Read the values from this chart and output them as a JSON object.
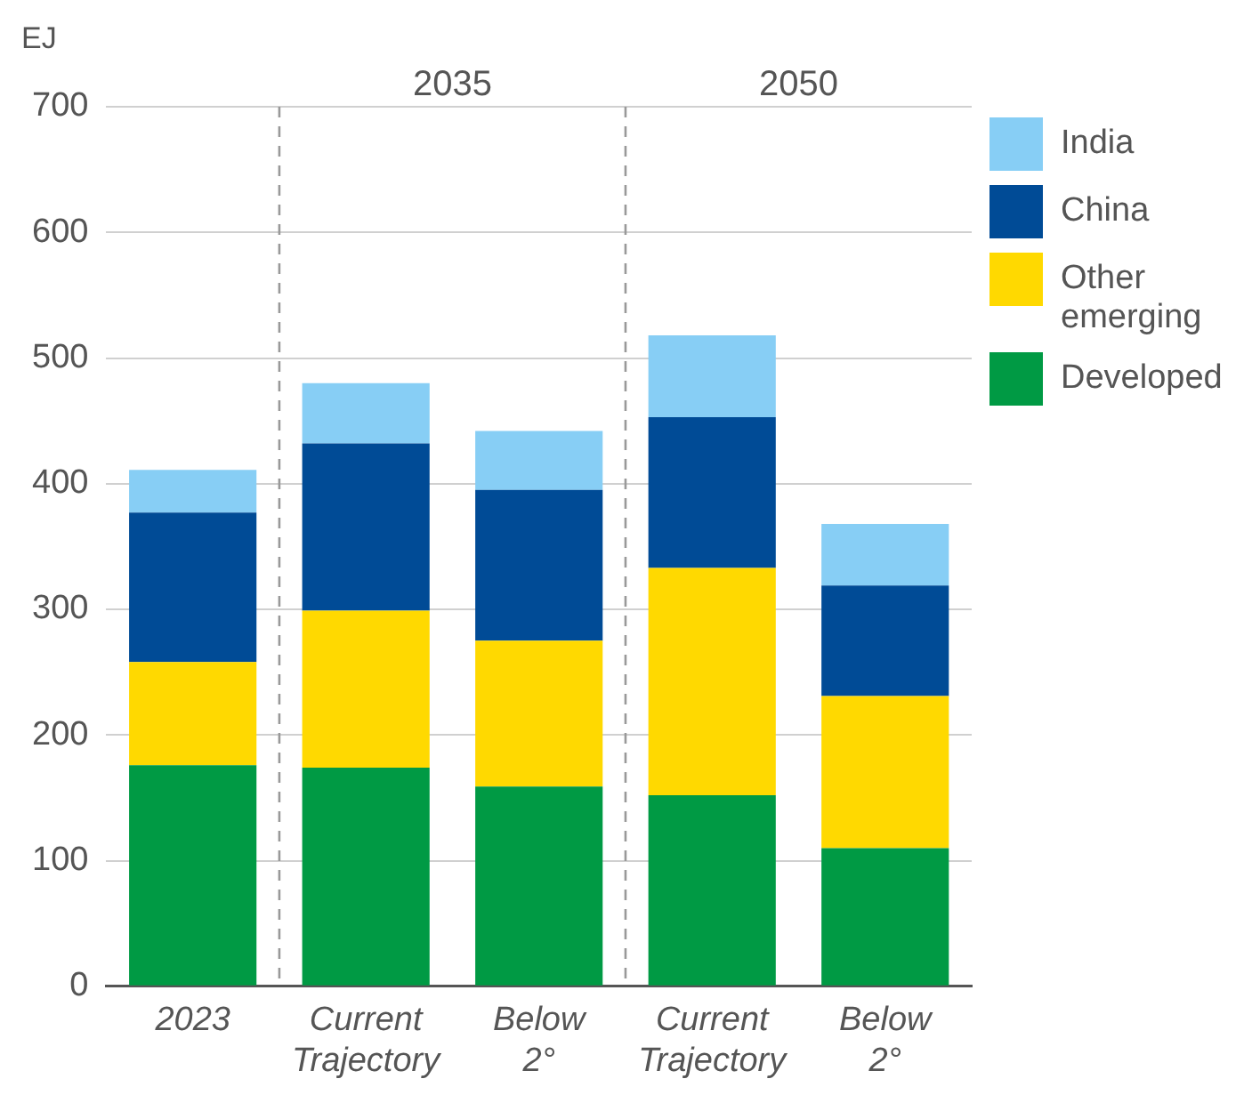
{
  "chart_data": {
    "type": "bar",
    "stacked": true,
    "ylabel": "EJ",
    "categories": [
      "2023",
      "Current Trajectory",
      "Below 2°",
      "Current Trajectory",
      "Below 2°"
    ],
    "series": [
      {
        "name": "Developed",
        "color": "#009a44",
        "values": [
          176,
          174,
          159,
          152,
          110
        ]
      },
      {
        "name": "Other emerging",
        "color": "#ffd900",
        "values": [
          82,
          125,
          116,
          181,
          121
        ]
      },
      {
        "name": "China",
        "color": "#004b96",
        "values": [
          119,
          133,
          120,
          120,
          88
        ]
      },
      {
        "name": "India",
        "color": "#87cef5",
        "values": [
          34,
          48,
          47,
          65,
          49
        ]
      }
    ],
    "ylim": [
      0,
      700
    ],
    "yticks": [
      0,
      100,
      200,
      300,
      400,
      500,
      600,
      700
    ],
    "grid": "y",
    "legend": "top right",
    "annotations": [
      "2035",
      "2050"
    ]
  }
}
